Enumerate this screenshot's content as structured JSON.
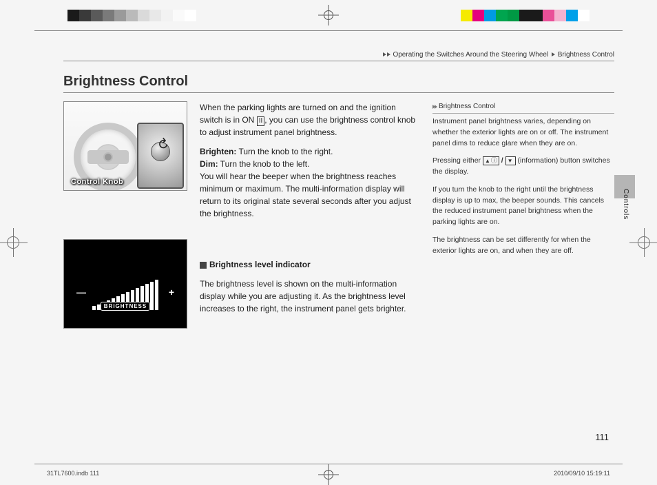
{
  "colorbar_left": [
    "#1a1a1a",
    "#3a3a3a",
    "#5a5a5a",
    "#7a7a7a",
    "#9a9a9a",
    "#bababa",
    "#dadada",
    "#e8e8e8",
    "#f2f2f2",
    "#fafafa",
    "#ffffff"
  ],
  "colorbar_right": [
    "#f5ea00",
    "#e5007e",
    "#009be5",
    "#00a54f",
    "#009944",
    "#1a1a1a",
    "#1a1a1a",
    "#e95098",
    "#f4b2cf",
    "#00a0e9",
    "#ffffff"
  ],
  "breadcrumb": {
    "section": "Operating the Switches Around the Steering Wheel",
    "page": "Brightness Control"
  },
  "title": "Brightness Control",
  "body": {
    "p1a": "When the parking lights are turned on and the ignition switch is in ON ",
    "ignition": "II",
    "p1b": ", you can use the brightness control knob to adjust instrument panel brightness.",
    "brighten_label": "Brighten:",
    "brighten_text": " Turn the knob to the right.",
    "dim_label": "Dim:",
    "dim_text": " Turn the knob to the left.",
    "p3": "You will hear the beeper when the brightness reaches minimum or maximum. The multi-information display will return to its original state several seconds after you adjust the brightness.",
    "sub_head": "Brightness level indicator",
    "p4": "The brightness level is shown on the multi-information display while you are adjusting it. As the brightness level increases to the right, the instrument panel gets brighter."
  },
  "sidebar": {
    "head": "Brightness Control",
    "p1": "Instrument panel brightness varies, depending on whether the exterior lights are on or off. The instrument panel dims to reduce glare when they are on.",
    "p2a": "Pressing either ",
    "icon_up": "ⓘ",
    "slash": " / ",
    "icon_dn": "",
    "p2b": " (information) button switches the display.",
    "p3": "If you turn the knob to the right until the brightness display is up to max, the beeper sounds. This cancels the reduced instrument panel brightness when the parking lights are on.",
    "p4": "The brightness can be set differently for when the exterior lights are on, and when they are off."
  },
  "knob_label": "Control Knob",
  "brightness_bars": [
    6,
    8,
    11,
    14,
    17,
    20,
    23,
    26,
    29,
    32,
    35,
    38,
    41,
    44
  ],
  "brightness_word": "BRIGHTNESS",
  "side_label": "Controls",
  "page_number": "111",
  "footer_left": "31TL7600.indb   111",
  "footer_right": "2010/09/10   15:19:11"
}
